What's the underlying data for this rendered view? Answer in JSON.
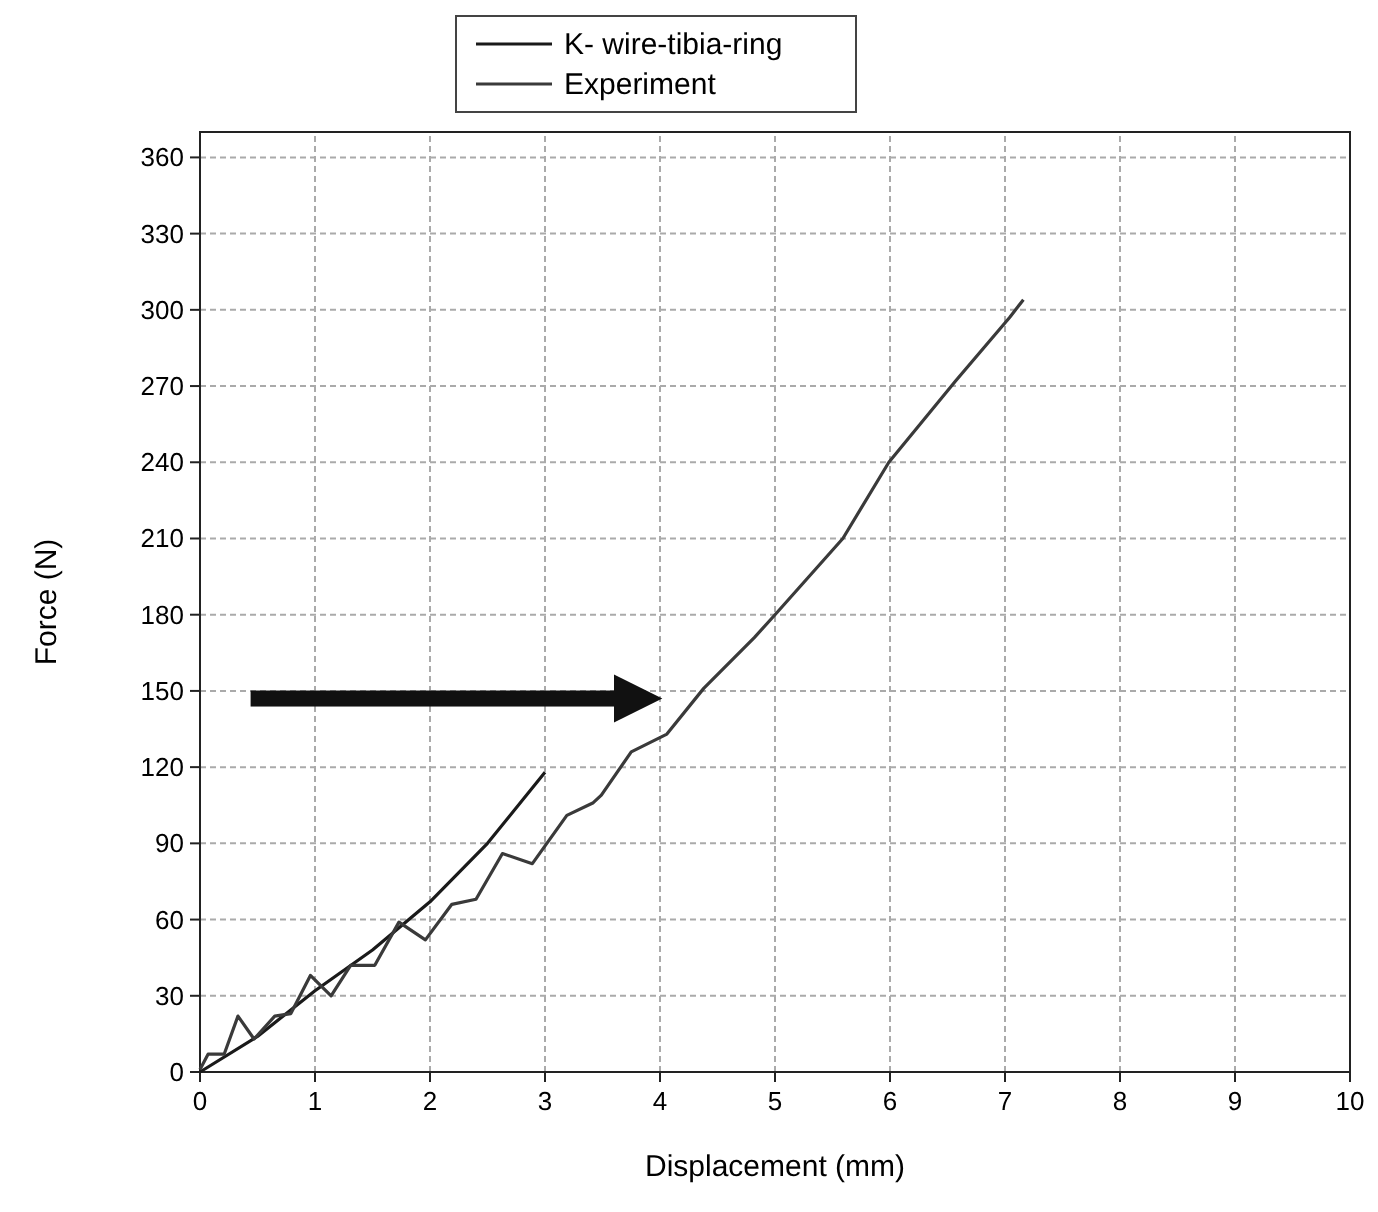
{
  "chart_data": {
    "type": "line",
    "xlabel": "Displacement (mm)",
    "ylabel": "Force (N)",
    "xlim": [
      0,
      10
    ],
    "xticks": [
      0,
      1,
      2,
      3,
      4,
      5,
      6,
      7,
      8,
      9,
      10
    ],
    "ylim": [
      0,
      370
    ],
    "yticks": [
      0,
      30,
      60,
      90,
      120,
      150,
      180,
      210,
      240,
      270,
      300,
      330,
      360
    ],
    "grid": true,
    "legend": "top",
    "line_style": "solid",
    "marker": "none",
    "series": [
      {
        "name": "K- wire-tibia-ring",
        "color": "#1a1a1a",
        "x": [
          0,
          0.5,
          1,
          1.5,
          2,
          2.5,
          3
        ],
        "values": [
          0,
          14,
          32,
          48,
          67,
          90,
          118
        ]
      },
      {
        "name": "Experiment",
        "color": "#3a3a3a",
        "x": [
          0,
          0.07,
          0.21,
          0.33,
          0.47,
          0.65,
          0.79,
          0.96,
          1.14,
          1.31,
          1.52,
          1.73,
          1.96,
          2.19,
          2.4,
          2.63,
          2.89,
          3.19,
          3.42,
          3.49,
          3.75,
          4.06,
          4.38,
          4.82,
          5.0,
          5.59,
          5.99,
          6.57,
          7.04,
          7.16
        ],
        "values": [
          1,
          7,
          7,
          22,
          13,
          22,
          23,
          38,
          30,
          42,
          42,
          59,
          52,
          66,
          68,
          86,
          82,
          101,
          106,
          109,
          126,
          133,
          151,
          171,
          180,
          210,
          240,
          272,
          297,
          304
        ]
      }
    ]
  }
}
